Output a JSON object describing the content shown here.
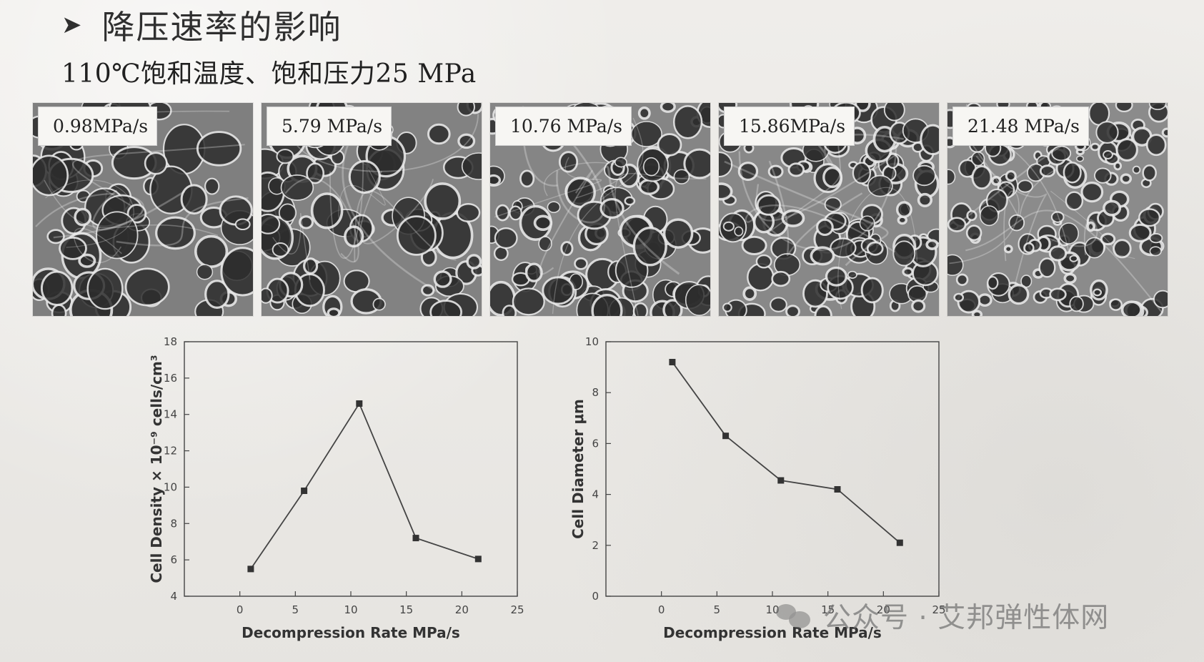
{
  "header": {
    "title": "降压速率的影响",
    "subtitle": "110℃饱和温度、饱和压力25 MPa"
  },
  "micrographs": [
    {
      "label": "0.98MPa/s",
      "tone": "#7f7f7f"
    },
    {
      "label": "5.79 MPa/s",
      "tone": "#828282"
    },
    {
      "label": "10.76 MPa/s",
      "tone": "#858585"
    },
    {
      "label": "15.86MPa/s",
      "tone": "#888888"
    },
    {
      "label": "21.48 MPa/s",
      "tone": "#8b8b8b"
    }
  ],
  "watermark": "公众号 · 艾邦弹性体网",
  "chart_data": [
    {
      "type": "line",
      "xlabel": "Decompression Rate MPa/s",
      "ylabel": "Cell Density × 10⁻⁹ cells/cm³",
      "xlim": [
        -5,
        25
      ],
      "ylim": [
        4,
        18
      ],
      "xticks": [
        0,
        5,
        10,
        15,
        20,
        25
      ],
      "yticks": [
        4,
        6,
        8,
        10,
        12,
        14,
        16,
        18
      ],
      "x": [
        0.98,
        5.79,
        10.76,
        15.86,
        21.48
      ],
      "y": [
        5.5,
        9.8,
        14.6,
        7.2,
        6.05
      ],
      "grid": false
    },
    {
      "type": "line",
      "xlabel": "Decompression Rate MPa/s",
      "ylabel": "Cell Diameter μm",
      "xlim": [
        -5,
        25
      ],
      "ylim": [
        0,
        10
      ],
      "xticks": [
        0,
        5,
        10,
        15,
        20,
        25
      ],
      "yticks": [
        0,
        2,
        4,
        6,
        8,
        10
      ],
      "x": [
        0.98,
        5.79,
        10.76,
        15.86,
        21.48
      ],
      "y": [
        9.2,
        6.3,
        4.55,
        4.2,
        2.1
      ],
      "grid": false
    }
  ]
}
